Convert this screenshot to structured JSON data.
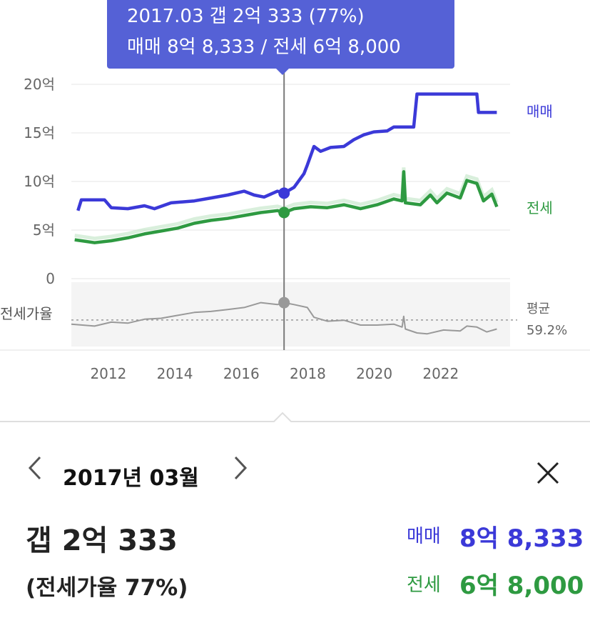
{
  "tooltip": {
    "line1": "2017.03  갭 2억 333 (77%)",
    "line2": "매매 8억 8,333 / 전세 6억 8,000"
  },
  "colors": {
    "sale": "#3b39d8",
    "jeonse": "#2e9a41",
    "ratio": "#999999",
    "accent": "#5561d6"
  },
  "chart_data": {
    "type": "line",
    "xlim": [
      2010.8,
      2024.0
    ],
    "x_ticks": [
      "2012",
      "2014",
      "2016",
      "2018",
      "2020",
      "2022"
    ],
    "ylim": [
      0,
      20
    ],
    "y_ticks": [
      "20억",
      "15억",
      "10억",
      "5억",
      "0"
    ],
    "y_unit": "억",
    "ratio_axis_label": "전세가율",
    "ratio_average_label": "평균",
    "ratio_average_value": "59.2%",
    "ratio_average": 59.2,
    "ratio_range": [
      35,
      95
    ],
    "cursor_x": 2017.2,
    "series": [
      {
        "name": "매매",
        "key": "sale",
        "points": [
          [
            2011.0,
            7.0
          ],
          [
            2011.1,
            8.1
          ],
          [
            2011.8,
            8.1
          ],
          [
            2012.0,
            7.3
          ],
          [
            2012.5,
            7.2
          ],
          [
            2013.0,
            7.5
          ],
          [
            2013.3,
            7.2
          ],
          [
            2013.8,
            7.8
          ],
          [
            2014.5,
            8.0
          ],
          [
            2015.0,
            8.3
          ],
          [
            2015.5,
            8.6
          ],
          [
            2016.0,
            9.0
          ],
          [
            2016.3,
            8.6
          ],
          [
            2016.6,
            8.4
          ],
          [
            2017.0,
            9.0
          ],
          [
            2017.2,
            8.8
          ],
          [
            2017.5,
            9.4
          ],
          [
            2017.8,
            10.8
          ],
          [
            2017.9,
            11.7
          ],
          [
            2018.1,
            13.6
          ],
          [
            2018.3,
            13.1
          ],
          [
            2018.6,
            13.5
          ],
          [
            2019.0,
            13.6
          ],
          [
            2019.3,
            14.3
          ],
          [
            2019.6,
            14.8
          ],
          [
            2019.9,
            15.1
          ],
          [
            2020.3,
            15.2
          ],
          [
            2020.5,
            15.6
          ],
          [
            2021.1,
            15.6
          ],
          [
            2021.2,
            19.0
          ],
          [
            2023.0,
            19.0
          ],
          [
            2023.05,
            17.1
          ],
          [
            2023.6,
            17.1
          ]
        ]
      },
      {
        "name": "전세",
        "key": "jeonse",
        "points": [
          [
            2010.9,
            4.0
          ],
          [
            2011.5,
            3.7
          ],
          [
            2012.0,
            3.9
          ],
          [
            2012.5,
            4.2
          ],
          [
            2013.0,
            4.6
          ],
          [
            2013.5,
            4.9
          ],
          [
            2014.0,
            5.2
          ],
          [
            2014.5,
            5.7
          ],
          [
            2015.0,
            6.0
          ],
          [
            2015.5,
            6.2
          ],
          [
            2016.0,
            6.5
          ],
          [
            2016.5,
            6.8
          ],
          [
            2017.0,
            7.0
          ],
          [
            2017.2,
            6.8
          ],
          [
            2017.5,
            7.2
          ],
          [
            2018.0,
            7.4
          ],
          [
            2018.5,
            7.3
          ],
          [
            2019.0,
            7.6
          ],
          [
            2019.5,
            7.2
          ],
          [
            2020.0,
            7.6
          ],
          [
            2020.5,
            8.2
          ],
          [
            2020.75,
            8.0
          ],
          [
            2020.8,
            11.0
          ],
          [
            2020.85,
            7.8
          ],
          [
            2021.3,
            7.6
          ],
          [
            2021.6,
            8.6
          ],
          [
            2021.8,
            7.8
          ],
          [
            2022.1,
            8.8
          ],
          [
            2022.5,
            8.3
          ],
          [
            2022.7,
            10.1
          ],
          [
            2023.0,
            9.8
          ],
          [
            2023.2,
            8.0
          ],
          [
            2023.45,
            8.7
          ],
          [
            2023.6,
            7.4
          ]
        ]
      },
      {
        "name": "전세가율",
        "key": "ratio",
        "points": [
          [
            2010.8,
            55
          ],
          [
            2011.5,
            53
          ],
          [
            2012.0,
            57
          ],
          [
            2012.5,
            56
          ],
          [
            2013.0,
            60
          ],
          [
            2013.5,
            61
          ],
          [
            2014.0,
            64
          ],
          [
            2014.5,
            67
          ],
          [
            2015.0,
            68
          ],
          [
            2015.5,
            70
          ],
          [
            2016.0,
            72
          ],
          [
            2016.5,
            77
          ],
          [
            2017.0,
            75
          ],
          [
            2017.2,
            77
          ],
          [
            2017.5,
            75
          ],
          [
            2017.9,
            72
          ],
          [
            2018.1,
            62
          ],
          [
            2018.5,
            58
          ],
          [
            2019.0,
            59
          ],
          [
            2019.5,
            54
          ],
          [
            2020.0,
            54
          ],
          [
            2020.5,
            55
          ],
          [
            2020.75,
            52
          ],
          [
            2020.8,
            63
          ],
          [
            2020.85,
            50
          ],
          [
            2021.2,
            46
          ],
          [
            2021.5,
            45
          ],
          [
            2022.0,
            49
          ],
          [
            2022.5,
            48
          ],
          [
            2022.7,
            53
          ],
          [
            2023.0,
            52
          ],
          [
            2023.3,
            47
          ],
          [
            2023.6,
            50
          ]
        ]
      }
    ],
    "series_labels": {
      "sale": "매매",
      "jeonse": "전세"
    }
  },
  "panel": {
    "date": "2017년 03월",
    "gap": "갭 2억 333",
    "ratio_text": "(전세가율 77%)",
    "sale_label": "매매",
    "sale_value": "8억 8,333",
    "jeonse_label": "전세",
    "jeonse_value": "6억 8,000"
  }
}
